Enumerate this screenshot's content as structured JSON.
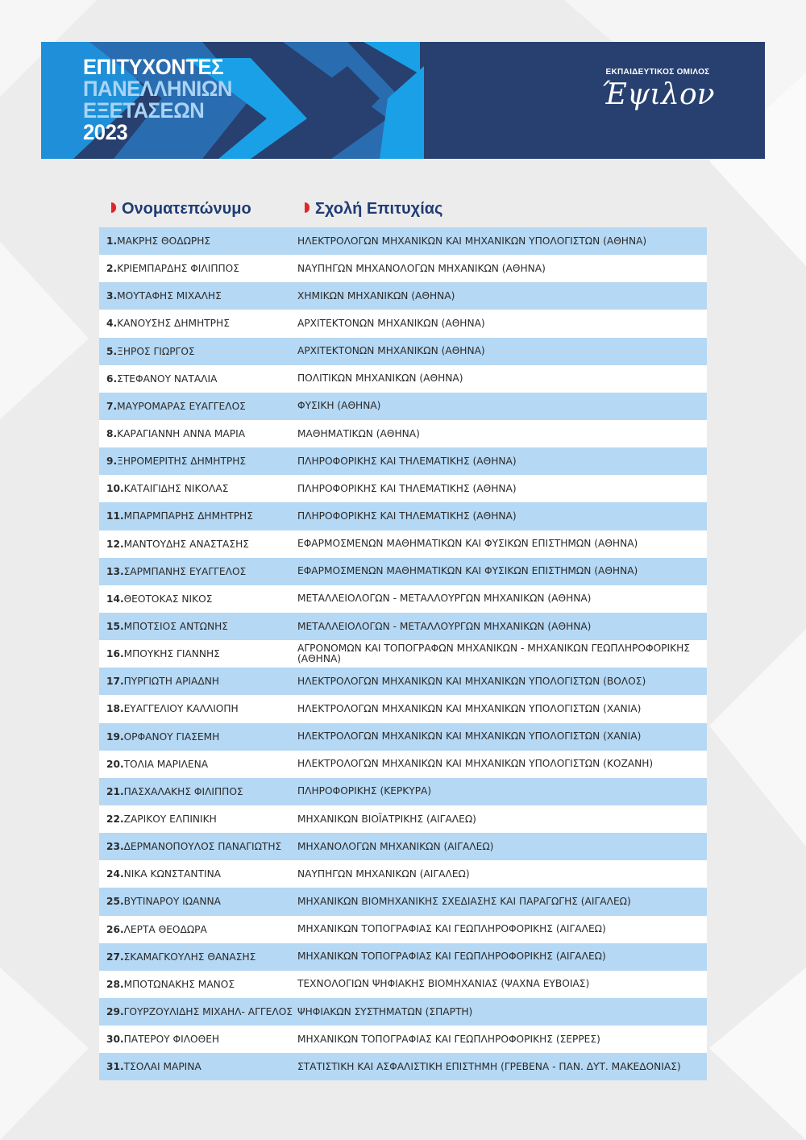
{
  "banner": {
    "title_lines": [
      "ΕΠΙΤΥΧΟΝΤΕΣ",
      "ΠΑΝΕΛΛΗΝΙΩΝ",
      "ΕΞΕΤΑΣΕΩΝ",
      "2023"
    ],
    "logo_top": "ΕΚΠΑΙΔΕΥΤΙΚΟΣ ΟΜΙΛΟΣ",
    "logo_script": "Έψιλον"
  },
  "headers": {
    "name": "Ονοματεπώνυμο",
    "school": "Σχολή Επιτυχίας"
  },
  "colors": {
    "dark_blue": "#27406f",
    "row_blue": "#b5d8f4",
    "accent_red": "#e0262c"
  },
  "rows": [
    {
      "n": "1.",
      "name": "ΜΑΚΡΗΣ ΘΟΔΩΡΗΣ",
      "school": "ΗΛΕΚΤΡΟΛΟΓΩΝ ΜΗΧΑΝΙΚΩΝ ΚΑΙ ΜΗΧΑΝΙΚΩΝ ΥΠΟΛΟΓΙΣΤΩΝ (ΑΘΗΝΑ)"
    },
    {
      "n": "2.",
      "name": "ΚΡΙΕΜΠΑΡΔΗΣ ΦΙΛΙΠΠΟΣ",
      "school": "ΝΑΥΠΗΓΩΝ ΜΗΧΑΝΟΛΟΓΩΝ ΜΗΧΑΝΙΚΩΝ (ΑΘΗΝΑ)"
    },
    {
      "n": "3.",
      "name": "ΜΟΥΤΑΦΗΣ ΜΙΧΑΛΗΣ",
      "school": "ΧΗΜΙΚΩΝ ΜΗΧΑΝΙΚΩΝ (ΑΘΗΝΑ)"
    },
    {
      "n": "4.",
      "name": "ΚΑΝΟΥΣΗΣ ΔΗΜΗΤΡΗΣ",
      "school": "ΑΡΧΙΤΕΚΤΟΝΩΝ ΜΗΧΑΝΙΚΩΝ (ΑΘΗΝΑ)"
    },
    {
      "n": "5.",
      "name": "ΞΗΡΟΣ ΓΙΩΡΓΟΣ",
      "school": "ΑΡΧΙΤΕΚΤΟΝΩΝ ΜΗΧΑΝΙΚΩΝ (ΑΘΗΝΑ)"
    },
    {
      "n": "6.",
      "name": "ΣΤΕΦΑΝΟΥ ΝΑΤΑΛΙΑ",
      "school": "ΠΟΛΙΤΙΚΩΝ ΜΗΧΑΝΙΚΩΝ (ΑΘΗΝΑ)"
    },
    {
      "n": "7.",
      "name": "ΜΑΥΡΟΜΑΡΑΣ ΕΥΑΓΓΕΛΟΣ",
      "school": "ΦΥΣΙΚΗ (ΑΘΗΝΑ)"
    },
    {
      "n": "8.",
      "name": "ΚΑΡΑΓΙΑΝΝΗ ΑΝΝΑ ΜΑΡΙΑ",
      "school": "ΜΑΘΗΜΑΤΙΚΩΝ (ΑΘΗΝΑ)"
    },
    {
      "n": "9.",
      "name": "ΞΗΡΟΜΕΡΙΤΗΣ ΔΗΜΗΤΡΗΣ",
      "school": "ΠΛΗΡΟΦΟΡΙΚΗΣ ΚΑΙ ΤΗΛΕΜΑΤΙΚΗΣ (ΑΘΗΝΑ)"
    },
    {
      "n": "10.",
      "name": "ΚΑΤΑΙΓΙΔΗΣ ΝΙΚΟΛΑΣ",
      "school": "ΠΛΗΡΟΦΟΡΙΚΗΣ ΚΑΙ ΤΗΛΕΜΑΤΙΚΗΣ (ΑΘΗΝΑ)"
    },
    {
      "n": "11.",
      "name": "ΜΠΑΡΜΠΑΡΗΣ ΔΗΜΗΤΡΗΣ",
      "school": "ΠΛΗΡΟΦΟΡΙΚΗΣ ΚΑΙ ΤΗΛΕΜΑΤΙΚΗΣ (ΑΘΗΝΑ)"
    },
    {
      "n": "12.",
      "name": "ΜΑΝΤΟΥΔΗΣ ΑΝΑΣΤΑΣΗΣ",
      "school": "ΕΦΑΡΜΟΣΜΕΝΩΝ ΜΑΘΗΜΑΤΙΚΩΝ ΚΑΙ ΦΥΣΙΚΩΝ ΕΠΙΣΤΗΜΩΝ (ΑΘΗΝΑ)"
    },
    {
      "n": "13.",
      "name": "ΣΑΡΜΠΑΝΗΣ ΕΥΑΓΓΕΛΟΣ",
      "school": "ΕΦΑΡΜΟΣΜΕΝΩΝ ΜΑΘΗΜΑΤΙΚΩΝ ΚΑΙ ΦΥΣΙΚΩΝ ΕΠΙΣΤΗΜΩΝ (ΑΘΗΝΑ)"
    },
    {
      "n": "14.",
      "name": "ΘΕΟΤΟΚΑΣ ΝΙΚΟΣ",
      "school": "ΜΕΤΑΛΛΕΙΟΛΟΓΩΝ - ΜΕΤΑΛΛΟΥΡΓΩΝ ΜΗΧΑΝΙΚΩΝ (ΑΘΗΝΑ)"
    },
    {
      "n": "15.",
      "name": "ΜΠΟΤΣΙΟΣ ΑΝΤΩΝΗΣ",
      "school": "ΜΕΤΑΛΛΕΙΟΛΟΓΩΝ - ΜΕΤΑΛΛΟΥΡΓΩΝ ΜΗΧΑΝΙΚΩΝ (ΑΘΗΝΑ)"
    },
    {
      "n": "16.",
      "name": "ΜΠΟΥΚΗΣ ΓΙΑΝΝΗΣ",
      "school": "ΑΓΡΟΝΟΜΩΝ ΚΑΙ ΤΟΠΟΓΡΑΦΩΝ ΜΗΧΑΝΙΚΩΝ - ΜΗΧΑΝΙΚΩΝ ΓΕΩΠΛΗΡΟΦΟΡΙΚΗΣ (ΑΘΗΝΑ)"
    },
    {
      "n": "17.",
      "name": "ΠΥΡΓΙΩΤΗ ΑΡΙΑΔΝΗ",
      "school": "ΗΛΕΚΤΡΟΛΟΓΩΝ ΜΗΧΑΝΙΚΩΝ ΚΑΙ ΜΗΧΑΝΙΚΩΝ ΥΠΟΛΟΓΙΣΤΩΝ (ΒΟΛΟΣ)"
    },
    {
      "n": "18.",
      "name": "ΕΥΑΓΓΕΛΙΟΥ ΚΑΛΛΙΟΠΗ",
      "school": "ΗΛΕΚΤΡΟΛΟΓΩΝ ΜΗΧΑΝΙΚΩΝ ΚΑΙ ΜΗΧΑΝΙΚΩΝ ΥΠΟΛΟΓΙΣΤΩΝ (ΧΑΝΙΑ)"
    },
    {
      "n": "19.",
      "name": "ΟΡΦΑΝΟΥ ΓΙΑΣΕΜΗ",
      "school": "ΗΛΕΚΤΡΟΛΟΓΩΝ ΜΗΧΑΝΙΚΩΝ ΚΑΙ ΜΗΧΑΝΙΚΩΝ ΥΠΟΛΟΓΙΣΤΩΝ (ΧΑΝΙΑ)"
    },
    {
      "n": "20.",
      "name": "ΤΟΛΙΑ ΜΑΡΙΛΕΝΑ",
      "school": "ΗΛΕΚΤΡΟΛΟΓΩΝ ΜΗΧΑΝΙΚΩΝ ΚΑΙ ΜΗΧΑΝΙΚΩΝ ΥΠΟΛΟΓΙΣΤΩΝ (ΚΟΖΑΝΗ)"
    },
    {
      "n": "21.",
      "name": "ΠΑΣΧΑΛΑΚΗΣ ΦΙΛΙΠΠΟΣ",
      "school": "ΠΛΗΡΟΦΟΡΙΚΗΣ (ΚΕΡΚΥΡΑ)"
    },
    {
      "n": "22.",
      "name": "ΖΑΡΙΚΟΥ ΕΛΠΙΝΙΚΗ",
      "school": "ΜΗΧΑΝΙΚΩΝ ΒΙΟΪΑΤΡΙΚΗΣ (ΑΙΓΑΛΕΩ)"
    },
    {
      "n": "23.",
      "name": "ΔΕΡΜΑΝΟΠΟΥΛΟΣ ΠΑΝΑΓΙΩΤΗΣ",
      "school": "ΜΗΧΑΝΟΛΟΓΩΝ ΜΗΧΑΝΙΚΩΝ (ΑΙΓΑΛΕΩ)"
    },
    {
      "n": "24.",
      "name": "ΝΙΚΑ ΚΩΝΣΤΑΝΤΙΝΑ",
      "school": "ΝΑΥΠΗΓΩΝ ΜΗΧΑΝΙΚΩΝ (ΑΙΓΑΛΕΩ)"
    },
    {
      "n": "25.",
      "name": "ΒΥΤΙΝΑΡΟΥ ΙΩΑΝΝΑ",
      "school": "ΜΗΧΑΝΙΚΩΝ ΒΙΟΜΗΧΑΝΙΚΗΣ ΣΧΕΔΙΑΣΗΣ ΚΑΙ ΠΑΡΑΓΩΓΗΣ (ΑΙΓΑΛΕΩ)"
    },
    {
      "n": "26.",
      "name": "ΛΕΡΤΑ ΘΕΟΔΩΡΑ",
      "school": "ΜΗΧΑΝΙΚΩΝ ΤΟΠΟΓΡΑΦΙΑΣ ΚΑΙ ΓΕΩΠΛΗΡΟΦΟΡΙΚΗΣ (ΑΙΓΑΛΕΩ)"
    },
    {
      "n": "27.",
      "name": "ΣΚΑΜΑΓΚΟΥΛΗΣ ΘΑΝΑΣΗΣ",
      "school": "ΜΗΧΑΝΙΚΩΝ ΤΟΠΟΓΡΑΦΙΑΣ ΚΑΙ ΓΕΩΠΛΗΡΟΦΟΡΙΚΗΣ (ΑΙΓΑΛΕΩ)"
    },
    {
      "n": "28.",
      "name": "ΜΠΟΤΩΝΑΚΗΣ ΜΑΝΟΣ",
      "school": "ΤΕΧΝΟΛΟΓΙΩΝ ΨΗΦΙΑΚΗΣ ΒΙΟΜΗΧΑΝΙΑΣ (ΨΑΧΝΑ ΕΥΒΟΙΑΣ)"
    },
    {
      "n": "29.",
      "name": "ΓΟΥΡΖΟΥΛΙΔΗΣ ΜΙΧΑΗΛ- ΑΓΓΕΛΟΣ",
      "school": "ΨΗΦΙΑΚΩΝ ΣΥΣΤΗΜΑΤΩΝ (ΣΠΑΡΤΗ)"
    },
    {
      "n": "30.",
      "name": "ΠΑΤΕΡΟΥ ΦΙΛΟΘΕΗ",
      "school": "ΜΗΧΑΝΙΚΩΝ ΤΟΠΟΓΡΑΦΙΑΣ ΚΑΙ ΓΕΩΠΛΗΡΟΦΟΡΙΚΗΣ (ΣΕΡΡΕΣ)"
    },
    {
      "n": "31.",
      "name": "ΤΣΟΛΑΙ ΜΑΡΙΝΑ",
      "school": "ΣΤΑΤΙΣΤΙΚΗ ΚΑΙ ΑΣΦΑΛΙΣΤΙΚΗ ΕΠΙΣΤΗΜΗ (ΓΡΕΒΕΝΑ - ΠΑΝ. ΔΥΤ. ΜΑΚΕΔΟΝΙΑΣ)"
    }
  ]
}
